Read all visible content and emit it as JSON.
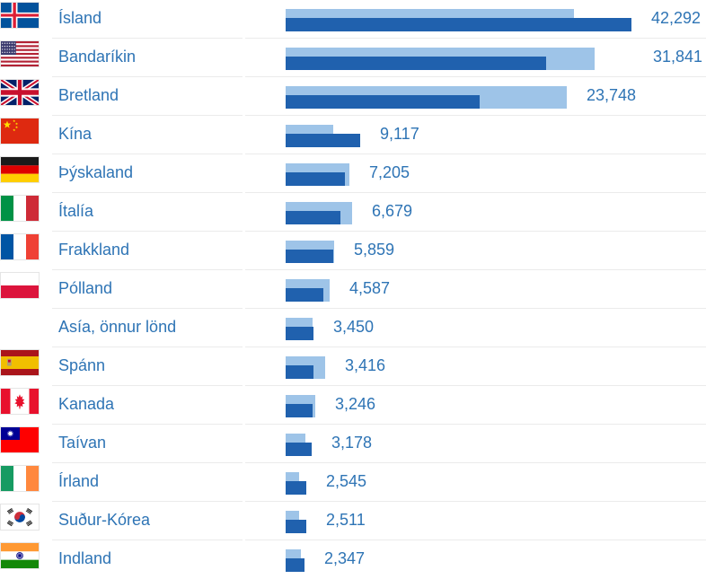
{
  "colors": {
    "bar_dark": "#2061AE",
    "bar_light": "#9EC4E8",
    "label_text": "#2E74B5",
    "divider": "#EBEBEB",
    "background": "#FFFFFF"
  },
  "chart_data": {
    "type": "bar",
    "orientation": "horizontal",
    "title": "",
    "xlabel": "",
    "ylabel": "",
    "value_axis": "hidden",
    "grid": false,
    "legend": "none",
    "xlim": [
      0,
      51000
    ],
    "categories": [
      "Ísland",
      "Bandaríkin",
      "Bretland",
      "Kína",
      "Þýskaland",
      "Ítalía",
      "Frakkland",
      "Pólland",
      "Asía, önnur lönd",
      "Spánn",
      "Kanada",
      "Taívan",
      "Írland",
      "Suður-Kórea",
      "Indland"
    ],
    "flags": [
      "iceland",
      "usa",
      "uk",
      "china",
      "germany",
      "italy",
      "france",
      "poland",
      null,
      "spain",
      "canada",
      "taiwan",
      "ireland",
      "south-korea",
      "india"
    ],
    "series": [
      {
        "name": "current-period (dark blue, labeled)",
        "color": "#2061AE",
        "values": [
          42292,
          31841,
          23748,
          9117,
          7205,
          6679,
          5859,
          4587,
          3450,
          3416,
          3246,
          3178,
          2545,
          2511,
          2347
        ]
      },
      {
        "name": "comparison-period (light blue, unlabeled, estimated from bar lengths)",
        "color": "#9EC4E8",
        "values": [
          35300,
          37800,
          34400,
          5800,
          7800,
          8100,
          5900,
          5400,
          3300,
          4800,
          3600,
          2400,
          1600,
          1600,
          1900
        ]
      }
    ],
    "value_labels": [
      "42,292",
      "31,841",
      "23,748",
      "9,117",
      "7,205",
      "6,679",
      "5,859",
      "4,587",
      "3,450",
      "3,416",
      "3,246",
      "3,178",
      "2,545",
      "2,511",
      "2,347"
    ]
  }
}
